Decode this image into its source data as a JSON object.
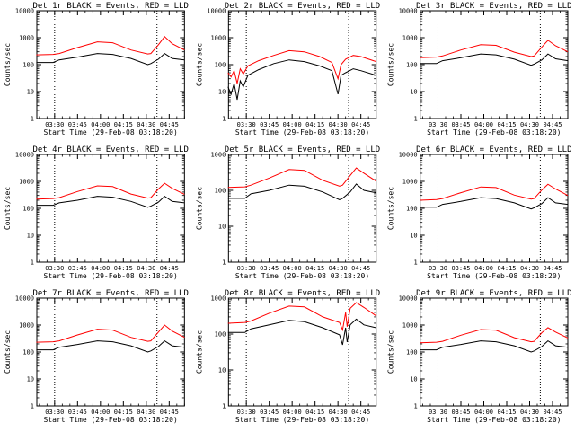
{
  "chart_data": [
    {
      "type": "line",
      "title": "Det 1r BLACK = Events, RED = LLD",
      "xlabel": "Start Time (29-Feb-08 03:18:20)",
      "ylabel": "Counts/sec",
      "yscale": "log",
      "ylim": [
        1,
        10000
      ],
      "xlim": [
        "03:18:20",
        "04:55:00"
      ],
      "x_ticks": [
        "03:30",
        "03:45",
        "04:00",
        "04:15",
        "04:30",
        "04:45"
      ],
      "y_ticks": [
        "1",
        "10",
        "100",
        "1000",
        "10000"
      ],
      "vlines": [
        "03:30",
        "04:37"
      ],
      "series": [
        {
          "color": "#000000",
          "x": [
            "03:18",
            "03:29",
            "03:33",
            "03:45",
            "03:58",
            "04:08",
            "04:20",
            "04:31",
            "04:33",
            "04:38",
            "04:42",
            "04:47",
            "04:55"
          ],
          "values": [
            120,
            120,
            150,
            190,
            260,
            240,
            170,
            100,
            110,
            160,
            260,
            170,
            150
          ]
        },
        {
          "color": "#ff0000",
          "x": [
            "03:18",
            "03:29",
            "03:33",
            "03:45",
            "03:58",
            "04:08",
            "04:20",
            "04:31",
            "04:33",
            "04:38",
            "04:42",
            "04:47",
            "04:55"
          ],
          "values": [
            230,
            240,
            260,
            430,
            700,
            650,
            350,
            250,
            260,
            550,
            1100,
            600,
            350
          ]
        }
      ]
    },
    {
      "type": "line",
      "title": "Det 2r BLACK = Events, RED = LLD",
      "xlabel": "Start Time (29-Feb-08 03:18:20)",
      "ylabel": "Counts/sec",
      "yscale": "log",
      "ylim": [
        1,
        10000
      ],
      "xlim": [
        "03:18:20",
        "04:55:00"
      ],
      "x_ticks": [
        "03:30",
        "03:45",
        "04:00",
        "04:15",
        "04:30",
        "04:45"
      ],
      "y_ticks": [
        "1",
        "10",
        "100",
        "1000",
        "10000"
      ],
      "vlines": [
        "03:30",
        "04:37"
      ],
      "series": [
        {
          "color": "#000000",
          "x": [
            "03:18",
            "03:20",
            "03:22",
            "03:24",
            "03:26",
            "03:28",
            "03:31",
            "03:38",
            "03:48",
            "03:58",
            "04:08",
            "04:18",
            "04:26",
            "04:30",
            "04:32",
            "04:35",
            "04:40",
            "04:45",
            "04:55"
          ],
          "values": [
            15,
            8,
            20,
            5,
            25,
            15,
            40,
            65,
            110,
            150,
            130,
            90,
            60,
            8,
            40,
            50,
            70,
            60,
            40
          ]
        },
        {
          "color": "#ff0000",
          "x": [
            "03:18",
            "03:20",
            "03:22",
            "03:24",
            "03:26",
            "03:28",
            "03:31",
            "03:38",
            "03:48",
            "03:58",
            "04:08",
            "04:18",
            "04:26",
            "04:30",
            "04:32",
            "04:35",
            "04:40",
            "04:45",
            "04:55"
          ],
          "values": [
            50,
            35,
            60,
            20,
            70,
            45,
            90,
            140,
            220,
            330,
            300,
            200,
            120,
            30,
            100,
            160,
            220,
            200,
            130
          ]
        }
      ]
    },
    {
      "type": "line",
      "title": "Det 3r BLACK = Events, RED = LLD",
      "xlabel": "Start Time (29-Feb-08 03:18:20)",
      "ylabel": "Counts/sec",
      "yscale": "log",
      "ylim": [
        1,
        10000
      ],
      "xlim": [
        "03:18:20",
        "04:55:00"
      ],
      "x_ticks": [
        "03:30",
        "03:45",
        "04:00",
        "04:15",
        "04:30",
        "04:45"
      ],
      "y_ticks": [
        "1",
        "10",
        "100",
        "1000",
        "10000"
      ],
      "vlines": [
        "03:30",
        "04:37"
      ],
      "series": [
        {
          "color": "#000000",
          "x": [
            "03:18",
            "03:29",
            "03:33",
            "03:45",
            "03:58",
            "04:08",
            "04:20",
            "04:31",
            "04:33",
            "04:38",
            "04:42",
            "04:47",
            "04:55"
          ],
          "values": [
            110,
            110,
            140,
            180,
            250,
            230,
            160,
            95,
            105,
            150,
            250,
            165,
            140
          ]
        },
        {
          "color": "#ff0000",
          "x": [
            "03:18",
            "03:29",
            "03:33",
            "03:45",
            "03:58",
            "04:08",
            "04:20",
            "04:31",
            "04:33",
            "04:38",
            "04:42",
            "04:47",
            "04:55"
          ],
          "values": [
            180,
            190,
            210,
            350,
            550,
            520,
            290,
            200,
            210,
            450,
            800,
            500,
            300
          ]
        }
      ]
    },
    {
      "type": "line",
      "title": "Det 4r BLACK = Events, RED = LLD",
      "xlabel": "Start Time (29-Feb-08 03:18:20)",
      "ylabel": "Counts/sec",
      "yscale": "log",
      "ylim": [
        1,
        10000
      ],
      "xlim": [
        "03:18:20",
        "04:55:00"
      ],
      "x_ticks": [
        "03:30",
        "03:45",
        "04:00",
        "04:15",
        "04:30",
        "04:45"
      ],
      "y_ticks": [
        "1",
        "10",
        "100",
        "1000",
        "10000"
      ],
      "vlines": [
        "03:30",
        "04:37"
      ],
      "series": [
        {
          "color": "#000000",
          "x": [
            "03:18",
            "03:29",
            "03:33",
            "03:45",
            "03:58",
            "04:08",
            "04:20",
            "04:31",
            "04:33",
            "04:38",
            "04:42",
            "04:47",
            "04:55"
          ],
          "values": [
            130,
            130,
            160,
            200,
            280,
            260,
            180,
            110,
            120,
            170,
            280,
            180,
            160
          ]
        },
        {
          "color": "#ff0000",
          "x": [
            "03:18",
            "03:29",
            "03:33",
            "03:45",
            "03:58",
            "04:08",
            "04:20",
            "04:31",
            "04:33",
            "04:38",
            "04:42",
            "04:47",
            "04:55"
          ],
          "values": [
            220,
            230,
            250,
            420,
            680,
            640,
            340,
            240,
            250,
            520,
            850,
            550,
            330
          ]
        }
      ]
    },
    {
      "type": "line",
      "title": "Det 5r BLACK = Events, RED = LLD",
      "xlabel": "Start Time (29-Feb-08 03:18:20)",
      "ylabel": "Counts/sec",
      "yscale": "log",
      "ylim": [
        1,
        1000
      ],
      "xlim": [
        "03:18:20",
        "04:55:00"
      ],
      "x_ticks": [
        "03:30",
        "03:45",
        "04:00",
        "04:15",
        "04:30",
        "04:45"
      ],
      "y_ticks": [
        "1",
        "10",
        "100",
        "1000"
      ],
      "vlines": [
        "03:30",
        "04:37"
      ],
      "series": [
        {
          "color": "#000000",
          "x": [
            "03:18",
            "03:29",
            "03:33",
            "03:45",
            "03:58",
            "04:08",
            "04:20",
            "04:31",
            "04:33",
            "04:38",
            "04:42",
            "04:47",
            "04:55"
          ],
          "values": [
            60,
            60,
            80,
            100,
            140,
            130,
            90,
            55,
            60,
            90,
            150,
            100,
            85
          ]
        },
        {
          "color": "#ff0000",
          "x": [
            "03:18",
            "03:29",
            "03:33",
            "03:45",
            "03:58",
            "04:08",
            "04:20",
            "04:31",
            "04:33",
            "04:38",
            "04:42",
            "04:47",
            "04:55"
          ],
          "values": [
            120,
            125,
            140,
            220,
            380,
            360,
            190,
            130,
            140,
            260,
            420,
            300,
            180
          ]
        }
      ]
    },
    {
      "type": "line",
      "title": "Det 6r BLACK = Events, RED = LLD",
      "xlabel": "Start Time (29-Feb-08 03:18:20)",
      "ylabel": "Counts/sec",
      "yscale": "log",
      "ylim": [
        1,
        10000
      ],
      "xlim": [
        "03:18:20",
        "04:55:00"
      ],
      "x_ticks": [
        "03:30",
        "03:45",
        "04:00",
        "04:15",
        "04:30",
        "04:45"
      ],
      "y_ticks": [
        "1",
        "10",
        "100",
        "1000",
        "10000"
      ],
      "vlines": [
        "03:30",
        "04:37"
      ],
      "series": [
        {
          "color": "#000000",
          "x": [
            "03:18",
            "03:29",
            "03:33",
            "03:45",
            "03:58",
            "04:08",
            "04:20",
            "04:31",
            "04:33",
            "04:38",
            "04:42",
            "04:47",
            "04:55"
          ],
          "values": [
            110,
            110,
            140,
            180,
            250,
            230,
            160,
            95,
            105,
            150,
            250,
            160,
            140
          ]
        },
        {
          "color": "#ff0000",
          "x": [
            "03:18",
            "03:29",
            "03:33",
            "03:45",
            "03:58",
            "04:08",
            "04:20",
            "04:31",
            "04:33",
            "04:38",
            "04:42",
            "04:47",
            "04:55"
          ],
          "values": [
            200,
            210,
            230,
            380,
            620,
            590,
            310,
            220,
            230,
            480,
            780,
            520,
            300
          ]
        }
      ]
    },
    {
      "type": "line",
      "title": "Det 7r BLACK = Events, RED = LLD",
      "xlabel": "Start Time (29-Feb-08 03:18:20)",
      "ylabel": "Counts/sec",
      "yscale": "log",
      "ylim": [
        1,
        10000
      ],
      "xlim": [
        "03:18:20",
        "04:55:00"
      ],
      "x_ticks": [
        "03:30",
        "03:45",
        "04:00",
        "04:15",
        "04:30",
        "04:45"
      ],
      "y_ticks": [
        "1",
        "10",
        "100",
        "1000",
        "10000"
      ],
      "vlines": [
        "03:30",
        "04:37"
      ],
      "series": [
        {
          "color": "#000000",
          "x": [
            "03:18",
            "03:29",
            "03:33",
            "03:45",
            "03:58",
            "04:08",
            "04:20",
            "04:31",
            "04:33",
            "04:38",
            "04:42",
            "04:47",
            "04:55"
          ],
          "values": [
            120,
            120,
            150,
            190,
            260,
            240,
            170,
            100,
            110,
            160,
            260,
            170,
            150
          ]
        },
        {
          "color": "#ff0000",
          "x": [
            "03:18",
            "03:29",
            "03:33",
            "03:45",
            "03:58",
            "04:08",
            "04:20",
            "04:31",
            "04:33",
            "04:38",
            "04:42",
            "04:47",
            "04:55"
          ],
          "values": [
            230,
            240,
            260,
            430,
            700,
            650,
            350,
            250,
            260,
            550,
            1000,
            600,
            350
          ]
        }
      ]
    },
    {
      "type": "line",
      "title": "Det 8r BLACK = Events, RED = LLD",
      "xlabel": "Start Time (29-Feb-08 03:18:20)",
      "ylabel": "Counts/sec",
      "yscale": "log",
      "ylim": [
        1,
        1000
      ],
      "xlim": [
        "03:18:20",
        "04:55:00"
      ],
      "x_ticks": [
        "03:30",
        "03:45",
        "04:00",
        "04:15",
        "04:30",
        "04:45"
      ],
      "y_ticks": [
        "1",
        "10",
        "100",
        "1000"
      ],
      "vlines": [
        "03:30",
        "04:37"
      ],
      "series": [
        {
          "color": "#000000",
          "x": [
            "03:18",
            "03:29",
            "03:33",
            "03:45",
            "03:58",
            "04:08",
            "04:20",
            "04:31",
            "04:33",
            "04:35",
            "04:36",
            "04:38",
            "04:42",
            "04:47",
            "04:55"
          ],
          "values": [
            110,
            110,
            140,
            180,
            240,
            220,
            150,
            95,
            50,
            150,
            60,
            180,
            260,
            180,
            150
          ]
        },
        {
          "color": "#ff0000",
          "x": [
            "03:18",
            "03:29",
            "03:33",
            "03:45",
            "03:58",
            "04:08",
            "04:20",
            "04:31",
            "04:33",
            "04:35",
            "04:36",
            "04:38",
            "04:42",
            "04:47",
            "04:55"
          ],
          "values": [
            200,
            210,
            230,
            380,
            600,
            570,
            300,
            210,
            130,
            400,
            160,
            520,
            750,
            550,
            320
          ]
        }
      ]
    },
    {
      "type": "line",
      "title": "Det 9r BLACK = Events, RED = LLD",
      "xlabel": "Start Time (29-Feb-08 03:18:20)",
      "ylabel": "Counts/sec",
      "yscale": "log",
      "ylim": [
        1,
        10000
      ],
      "xlim": [
        "03:18:20",
        "04:55:00"
      ],
      "x_ticks": [
        "03:30",
        "03:45",
        "04:00",
        "04:15",
        "04:30",
        "04:45"
      ],
      "y_ticks": [
        "1",
        "10",
        "100",
        "1000",
        "10000"
      ],
      "vlines": [
        "03:30",
        "04:37"
      ],
      "series": [
        {
          "color": "#000000",
          "x": [
            "03:18",
            "03:29",
            "03:33",
            "03:45",
            "03:58",
            "04:08",
            "04:20",
            "04:31",
            "04:33",
            "04:38",
            "04:42",
            "04:47",
            "04:55"
          ],
          "values": [
            120,
            120,
            150,
            190,
            260,
            240,
            170,
            100,
            110,
            160,
            260,
            170,
            150
          ]
        },
        {
          "color": "#ff0000",
          "x": [
            "03:18",
            "03:29",
            "03:33",
            "03:45",
            "03:58",
            "04:08",
            "04:20",
            "04:31",
            "04:33",
            "04:38",
            "04:42",
            "04:47",
            "04:55"
          ],
          "values": [
            220,
            230,
            250,
            420,
            680,
            640,
            340,
            240,
            250,
            520,
            800,
            550,
            330
          ]
        }
      ]
    }
  ]
}
